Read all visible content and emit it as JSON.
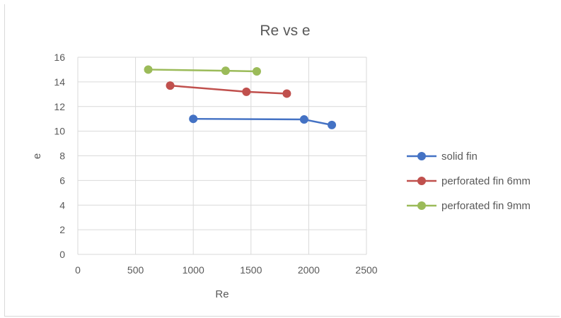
{
  "chart_data": {
    "type": "line",
    "title": "Re vs e",
    "xlabel": "Re",
    "ylabel": "e",
    "xlim": [
      0,
      2500
    ],
    "ylim": [
      0,
      16
    ],
    "xticks": [
      0,
      500,
      1000,
      1500,
      2000,
      2500
    ],
    "yticks": [
      0,
      2,
      4,
      6,
      8,
      10,
      12,
      14,
      16
    ],
    "grid": true,
    "legend_position": "right",
    "series": [
      {
        "name": "solid fin",
        "color": "#4472c4",
        "points": [
          [
            1000,
            11.0
          ],
          [
            1960,
            10.95
          ],
          [
            2200,
            10.5
          ]
        ]
      },
      {
        "name": "perforated fin 6mm",
        "color": "#c0504d",
        "points": [
          [
            800,
            13.7
          ],
          [
            1460,
            13.2
          ],
          [
            1810,
            13.05
          ]
        ]
      },
      {
        "name": "perforated fin 9mm",
        "color": "#9bbb59",
        "points": [
          [
            610,
            15.0
          ],
          [
            1280,
            14.9
          ],
          [
            1550,
            14.85
          ]
        ]
      }
    ]
  }
}
